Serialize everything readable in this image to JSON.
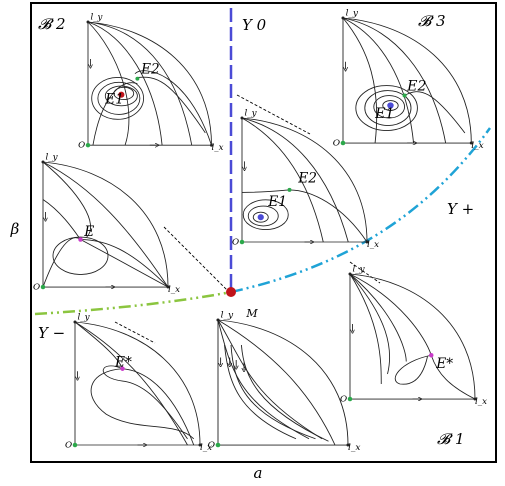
{
  "axes": {
    "x_label": "a",
    "y_label": "β"
  },
  "regions": {
    "b2": "𝓑 2",
    "b3": "𝓑 3",
    "b1": "𝓑 1",
    "gamma0": "Υ 0",
    "gamma_plus": "Υ +",
    "gamma_minus": "Υ −"
  },
  "point_m": "M",
  "insets": {
    "b2_top": {
      "ly": "l_y",
      "lx": "l_x",
      "o": "O",
      "e1": "E1",
      "e2": "E2"
    },
    "b3_top": {
      "ly": "l_y",
      "lx": "l_x",
      "o": "O",
      "e1": "E1",
      "e2": "E2"
    },
    "center": {
      "ly": "l_y",
      "lx": "l_x",
      "o": "O",
      "e1": "E1",
      "e2": "E2"
    },
    "left_mid": {
      "ly": "l_y",
      "lx": "l_x",
      "o": "O",
      "e": "E"
    },
    "right_mid": {
      "ly": "l_y",
      "lx": "l_x",
      "o": "O",
      "e": "E*"
    },
    "bottom_left": {
      "ly": "l_y",
      "lx": "l_x",
      "o": "O",
      "e": "E*"
    },
    "bottom_center": {
      "ly": "l_y",
      "lx": "l_x",
      "o": "O"
    }
  },
  "colors": {
    "gamma0_line": "#4b4bd6",
    "gamma_plus_line": "#1fa3d6",
    "gamma_minus_line": "#8bc53f",
    "point_m": "#c0141b",
    "equilibrium_green": "#2ba84a",
    "equilibrium_magenta": "#c93bc9"
  }
}
